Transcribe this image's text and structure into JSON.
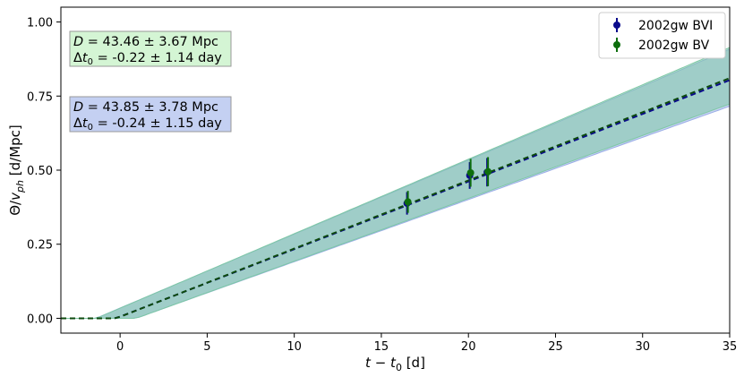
{
  "chart_data": {
    "type": "scatter",
    "xlabel": "t − t₀ [d]",
    "ylabel": "Θ/v_ph [d/Mpc]",
    "xlim": [
      -3.4,
      35
    ],
    "ylim": [
      -0.05,
      1.05
    ],
    "xticks": [
      0,
      5,
      10,
      15,
      20,
      25,
      30,
      35
    ],
    "yticks": [
      0.0,
      0.25,
      0.5,
      0.75,
      1.0
    ],
    "xtick_labels": [
      "0",
      "5",
      "10",
      "15",
      "20",
      "25",
      "30",
      "35"
    ],
    "ytick_labels": [
      "0.00",
      "0.25",
      "0.50",
      "0.75",
      "1.00"
    ],
    "grid": false,
    "legend_position": "top-right",
    "series": [
      {
        "name": "2002gw BVI",
        "color": "#0a0a8c",
        "points": [
          {
            "x": 16.5,
            "y": 0.388,
            "yerr": 0.038
          },
          {
            "x": 20.1,
            "y": 0.482,
            "yerr": 0.045
          },
          {
            "x": 21.1,
            "y": 0.493,
            "yerr": 0.048
          }
        ],
        "fit": {
          "D": 43.85,
          "D_err": 3.78,
          "dt0": -0.24,
          "dt0_err": 1.15
        },
        "band_color": "#9aaee6",
        "annotation": {
          "line1": "D = 43.85 ± 3.78 Mpc",
          "line2": "Δt0 = -0.24 ± 1.15 day",
          "bg": "#c4d0f2"
        }
      },
      {
        "name": "2002gw BV",
        "color": "#0d6e0d",
        "points": [
          {
            "x": 16.5,
            "y": 0.393,
            "yerr": 0.037
          },
          {
            "x": 20.1,
            "y": 0.491,
            "yerr": 0.047
          },
          {
            "x": 21.1,
            "y": 0.495,
            "yerr": 0.049
          }
        ],
        "fit": {
          "D": 43.46,
          "D_err": 3.67,
          "dt0": -0.22,
          "dt0_err": 1.14
        },
        "band_color": "#7ec8a6",
        "annotation": {
          "line1": "D = 43.46 ± 3.67 Mpc",
          "line2": "Δt0 = -0.22 ± 1.14 day",
          "bg": "#d4f5d4"
        }
      }
    ]
  }
}
